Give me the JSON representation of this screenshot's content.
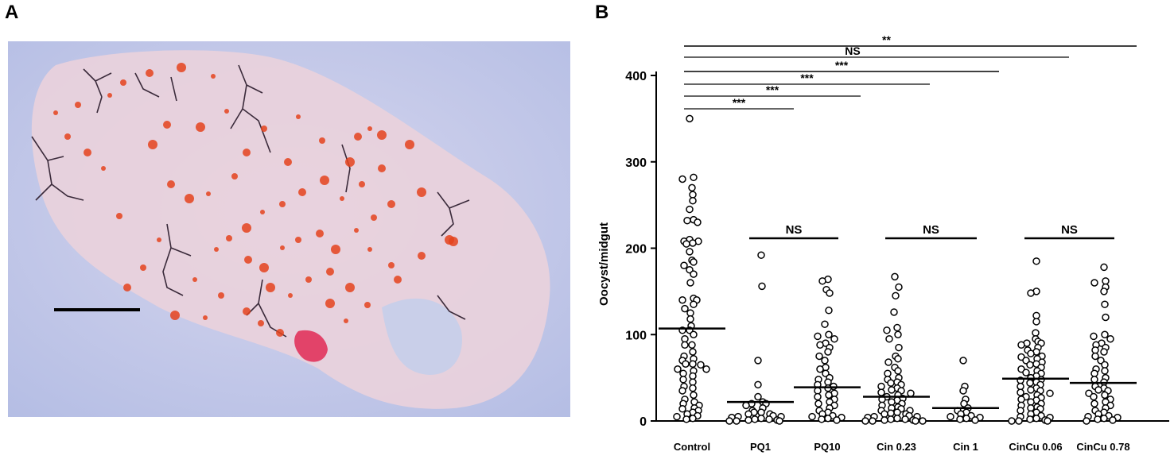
{
  "panels": {
    "a_label": "A",
    "b_label": "B"
  },
  "micrograph": {
    "description_icon": "midgut-micrograph-icon",
    "colors": {
      "background": "#c3c8e8",
      "tissue": "#ead2dc",
      "oocyst": "#e4431d",
      "trachea": "#3a2a3a",
      "stain": "#e02a55",
      "scale_bar": "#000000"
    }
  },
  "chart_data": {
    "type": "scatter",
    "ylabel": "Oocyst/midgut",
    "xlabel": "",
    "ylim": [
      0,
      400
    ],
    "yticks": [
      0,
      100,
      200,
      300,
      400
    ],
    "categories": [
      "Control",
      "PQ1",
      "PQ10",
      "Cin 0.23",
      "Cin  1",
      "CinCu 0.06",
      "CinCu 0.78"
    ],
    "marker": "open-circle",
    "series": [
      {
        "category": "Control",
        "mean": 107,
        "values": [
          350,
          282,
          280,
          270,
          262,
          255,
          245,
          233,
          232,
          230,
          210,
          208,
          208,
          206,
          205,
          196,
          186,
          184,
          180,
          175,
          170,
          160,
          142,
          140,
          140,
          135,
          130,
          125,
          118,
          110,
          105,
          105,
          100,
          95,
          88,
          88,
          80,
          75,
          72,
          70,
          66,
          66,
          65,
          60,
          60,
          58,
          55,
          52,
          48,
          45,
          40,
          38,
          35,
          30,
          25,
          22,
          20,
          18,
          15,
          14,
          12,
          10,
          8,
          6,
          5,
          3,
          2
        ]
      },
      {
        "category": "PQ1",
        "mean": 22,
        "values": [
          192,
          156,
          70,
          42,
          28,
          22,
          20,
          20,
          18,
          15,
          12,
          10,
          10,
          8,
          8,
          6,
          5,
          5,
          4,
          3,
          2,
          2,
          1,
          1,
          0,
          0,
          0
        ]
      },
      {
        "category": "PQ10",
        "mean": 39,
        "values": [
          164,
          162,
          152,
          148,
          128,
          112,
          100,
          98,
          95,
          90,
          88,
          85,
          80,
          75,
          70,
          62,
          60,
          55,
          50,
          48,
          45,
          42,
          40,
          38,
          35,
          32,
          30,
          28,
          25,
          22,
          20,
          18,
          15,
          12,
          10,
          8,
          6,
          5,
          4,
          3,
          2,
          1
        ]
      },
      {
        "category": "Cin 0.23",
        "mean": 28,
        "values": [
          167,
          155,
          145,
          126,
          108,
          105,
          100,
          95,
          85,
          75,
          72,
          68,
          62,
          58,
          55,
          50,
          48,
          45,
          44,
          42,
          40,
          38,
          36,
          35,
          33,
          32,
          30,
          28,
          26,
          25,
          24,
          22,
          20,
          18,
          16,
          15,
          14,
          12,
          12,
          10,
          9,
          8,
          8,
          6,
          5,
          5,
          4,
          3,
          2,
          2,
          1,
          1,
          0,
          0,
          0,
          0
        ]
      },
      {
        "category": "Cin  1",
        "mean": 15,
        "values": [
          70,
          40,
          35,
          25,
          20,
          15,
          12,
          10,
          8,
          6,
          5,
          4,
          3,
          2,
          1
        ]
      },
      {
        "category": "CinCu 0.06",
        "mean": 49,
        "values": [
          185,
          150,
          148,
          122,
          115,
          102,
          95,
          92,
          90,
          90,
          88,
          85,
          82,
          80,
          78,
          75,
          74,
          72,
          70,
          68,
          66,
          65,
          62,
          60,
          58,
          56,
          55,
          52,
          50,
          48,
          47,
          45,
          44,
          42,
          40,
          38,
          36,
          35,
          33,
          32,
          30,
          28,
          27,
          25,
          24,
          22,
          20,
          18,
          16,
          15,
          14,
          12,
          10,
          8,
          6,
          5,
          4,
          3,
          2,
          1,
          0,
          0,
          0
        ]
      },
      {
        "category": "CinCu 0.78",
        "mean": 44,
        "values": [
          178,
          162,
          160,
          155,
          150,
          135,
          120,
          100,
          98,
          95,
          90,
          88,
          85,
          82,
          80,
          75,
          70,
          65,
          60,
          58,
          55,
          50,
          48,
          45,
          40,
          38,
          36,
          35,
          32,
          30,
          28,
          25,
          22,
          20,
          18,
          15,
          12,
          10,
          8,
          6,
          5,
          4,
          3,
          2,
          1,
          0
        ]
      }
    ],
    "significance": [
      {
        "from": 0,
        "to": 6,
        "label": "**"
      },
      {
        "from": 0,
        "to": 5,
        "label": "NS"
      },
      {
        "from": 0,
        "to": 4,
        "label": "***"
      },
      {
        "from": 0,
        "to": 3,
        "label": "***"
      },
      {
        "from": 0,
        "to": 2,
        "label": "***"
      },
      {
        "from": 0,
        "to": 1,
        "label": "***"
      }
    ],
    "pair_comparisons": [
      {
        "from": 1,
        "to": 2,
        "label": "NS"
      },
      {
        "from": 3,
        "to": 4,
        "label": "NS"
      },
      {
        "from": 5,
        "to": 6,
        "label": "NS"
      }
    ]
  }
}
